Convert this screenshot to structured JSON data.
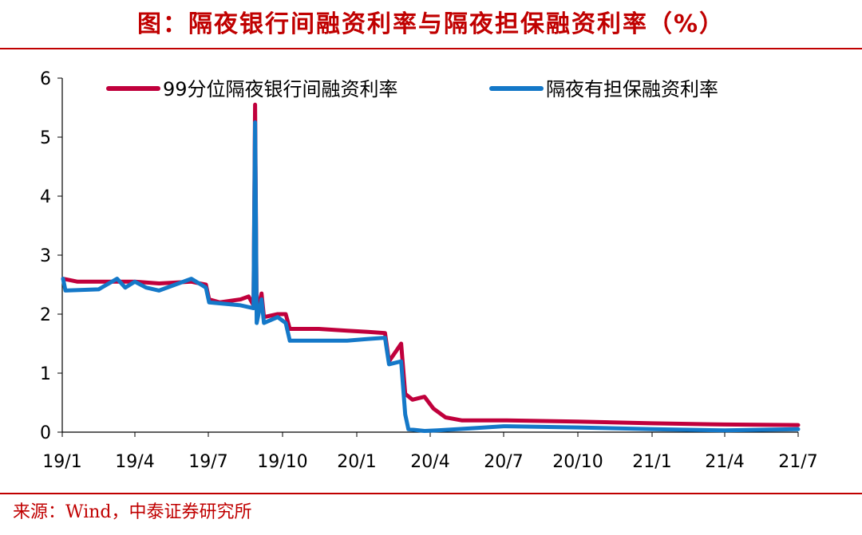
{
  "header": {
    "title": "图：隔夜银行间融资利率与隔夜担保融资利率（%）"
  },
  "footer": {
    "source": "来源：Wind，中泰证券研究所"
  },
  "colors": {
    "title": "#C00000",
    "series_interbank": "#C0003C",
    "series_secured": "#1478C8"
  },
  "chart_data": {
    "type": "line",
    "title": "隔夜银行间融资利率与隔夜担保融资利率（%）",
    "xlabel": "",
    "ylabel": "",
    "x_ticks": [
      "19/1",
      "19/4",
      "19/7",
      "19/10",
      "20/1",
      "20/4",
      "20/7",
      "20/10",
      "21/1",
      "21/4",
      "21/7"
    ],
    "y_ticks": [
      "0",
      "1",
      "2",
      "3",
      "4",
      "5",
      "6"
    ],
    "ylim": [
      0,
      6
    ],
    "xlim": [
      "2019-01",
      "2021-07"
    ],
    "grid": false,
    "legend_position": "top",
    "series": [
      {
        "name": "99分位隔夜银行间融资利率",
        "color": "#C0003C",
        "points": [
          [
            "2019-01-02",
            2.6
          ],
          [
            "2019-01-20",
            2.55
          ],
          [
            "2019-02-15",
            2.55
          ],
          [
            "2019-03-10",
            2.55
          ],
          [
            "2019-04-01",
            2.55
          ],
          [
            "2019-05-01",
            2.52
          ],
          [
            "2019-06-10",
            2.55
          ],
          [
            "2019-06-28",
            2.5
          ],
          [
            "2019-07-02",
            2.25
          ],
          [
            "2019-07-15",
            2.2
          ],
          [
            "2019-08-10",
            2.25
          ],
          [
            "2019-08-20",
            2.3
          ],
          [
            "2019-08-26",
            2.15
          ],
          [
            "2019-08-28",
            5.55
          ],
          [
            "2019-08-30",
            2.0
          ],
          [
            "2019-09-05",
            2.35
          ],
          [
            "2019-09-08",
            1.95
          ],
          [
            "2019-09-25",
            2.0
          ],
          [
            "2019-10-05",
            2.0
          ],
          [
            "2019-10-10",
            1.75
          ],
          [
            "2019-11-15",
            1.75
          ],
          [
            "2019-12-20",
            1.72
          ],
          [
            "2020-01-15",
            1.7
          ],
          [
            "2020-02-05",
            1.68
          ],
          [
            "2020-02-10",
            1.2
          ],
          [
            "2020-02-20",
            1.4
          ],
          [
            "2020-02-25",
            1.5
          ],
          [
            "2020-03-01",
            0.65
          ],
          [
            "2020-03-10",
            0.55
          ],
          [
            "2020-03-25",
            0.6
          ],
          [
            "2020-04-05",
            0.4
          ],
          [
            "2020-04-20",
            0.25
          ],
          [
            "2020-05-10",
            0.2
          ],
          [
            "2020-07-01",
            0.2
          ],
          [
            "2020-10-01",
            0.18
          ],
          [
            "2021-01-01",
            0.15
          ],
          [
            "2021-04-01",
            0.13
          ],
          [
            "2021-07-01",
            0.12
          ]
        ]
      },
      {
        "name": "隔夜有担保融资利率",
        "color": "#1478C8",
        "points": [
          [
            "2019-01-02",
            2.6
          ],
          [
            "2019-01-05",
            2.4
          ],
          [
            "2019-02-15",
            2.42
          ],
          [
            "2019-03-10",
            2.6
          ],
          [
            "2019-03-20",
            2.45
          ],
          [
            "2019-04-01",
            2.55
          ],
          [
            "2019-04-15",
            2.45
          ],
          [
            "2019-05-01",
            2.4
          ],
          [
            "2019-06-10",
            2.6
          ],
          [
            "2019-06-28",
            2.45
          ],
          [
            "2019-07-02",
            2.2
          ],
          [
            "2019-08-10",
            2.15
          ],
          [
            "2019-08-26",
            2.1
          ],
          [
            "2019-08-28",
            5.25
          ],
          [
            "2019-08-30",
            1.85
          ],
          [
            "2019-09-05",
            2.25
          ],
          [
            "2019-09-08",
            1.85
          ],
          [
            "2019-09-25",
            1.95
          ],
          [
            "2019-10-05",
            1.85
          ],
          [
            "2019-10-10",
            1.55
          ],
          [
            "2019-11-15",
            1.55
          ],
          [
            "2019-12-20",
            1.55
          ],
          [
            "2020-01-15",
            1.58
          ],
          [
            "2020-02-05",
            1.6
          ],
          [
            "2020-02-10",
            1.15
          ],
          [
            "2020-02-25",
            1.2
          ],
          [
            "2020-03-01",
            0.3
          ],
          [
            "2020-03-05",
            0.05
          ],
          [
            "2020-03-25",
            0.02
          ],
          [
            "2020-04-10",
            0.03
          ],
          [
            "2020-05-15",
            0.06
          ],
          [
            "2020-07-01",
            0.1
          ],
          [
            "2020-10-01",
            0.08
          ],
          [
            "2021-01-01",
            0.05
          ],
          [
            "2021-04-01",
            0.03
          ],
          [
            "2021-07-01",
            0.05
          ]
        ]
      }
    ]
  }
}
